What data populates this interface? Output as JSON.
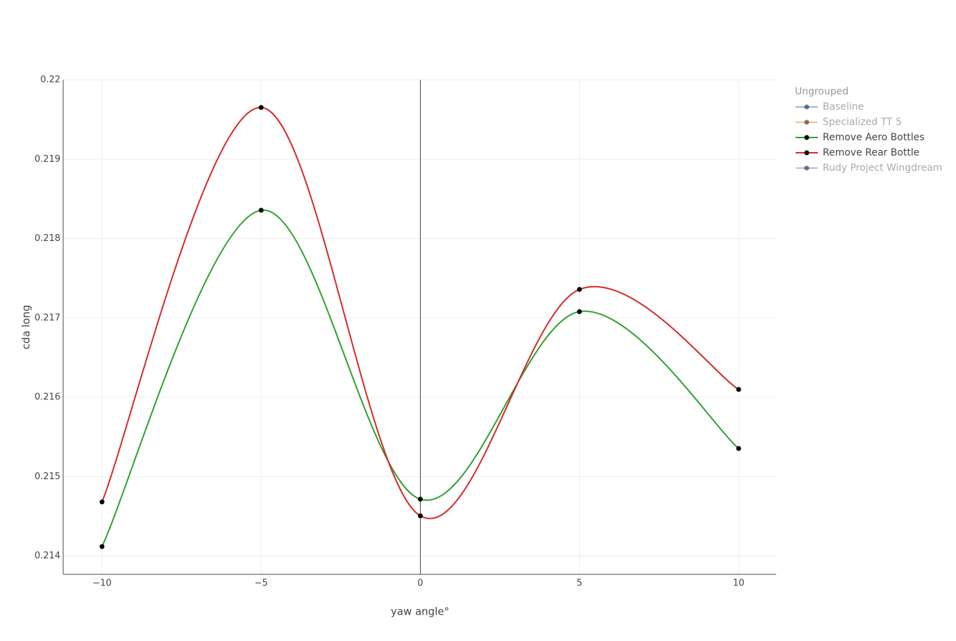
{
  "chart_data": {
    "type": "line",
    "line_shape": "spline",
    "x_label": "yaw angle°",
    "y_label": "cda long",
    "x": [
      -10,
      -5,
      0,
      5,
      10
    ],
    "legend_title": "Ungrouped",
    "series": [
      {
        "name": "Baseline",
        "color": "#1f77b4",
        "visible": false,
        "values": [
          null,
          null,
          null,
          null,
          null
        ]
      },
      {
        "name": "Specialized TT 5",
        "color": "#ff7f0e",
        "visible": false,
        "values": [
          null,
          null,
          null,
          null,
          null
        ]
      },
      {
        "name": "Remove Aero Bottles",
        "color": "#2ca02c",
        "visible": true,
        "values": [
          0.21412,
          0.218357,
          0.214717,
          0.21708,
          0.215356
        ]
      },
      {
        "name": "Remove Rear Bottle",
        "color": "#d62728",
        "visible": true,
        "values": [
          0.214682,
          0.219652,
          0.214507,
          0.21736,
          0.2161
        ]
      },
      {
        "name": "Rudy Project Wingdream",
        "color": "#9467bd",
        "visible": false,
        "values": [
          null,
          null,
          null,
          null,
          null
        ]
      }
    ],
    "marker_color": "#000000",
    "xlim": [
      -11.22,
      11.18
    ],
    "ylim": [
      0.21377,
      0.22
    ],
    "xticks": [
      {
        "value": -10,
        "label": "−10"
      },
      {
        "value": -5,
        "label": "−5"
      },
      0,
      5,
      10
    ],
    "yticks": [
      0.214,
      0.215,
      0.216,
      0.217,
      0.218,
      0.219,
      0.22
    ],
    "grid": true,
    "zeroline": true,
    "legend_position": "right"
  }
}
